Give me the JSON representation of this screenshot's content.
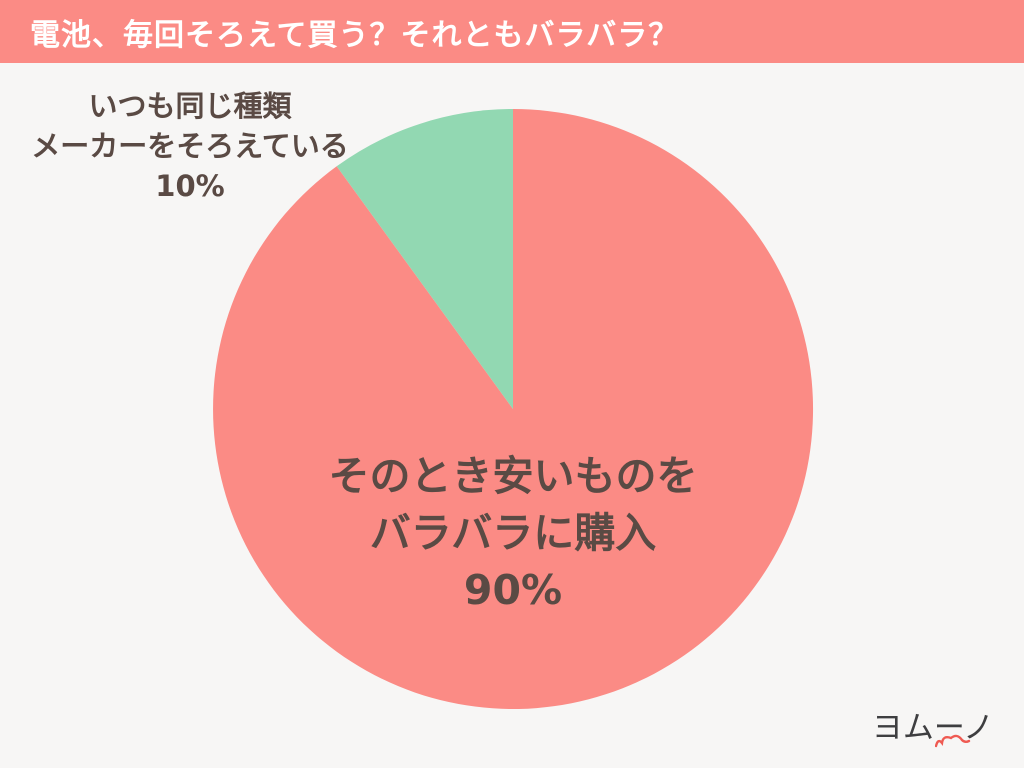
{
  "header": {
    "title": "電池、毎回そろえて買う？それともバラバラ？",
    "bg_color": "#FB8B85",
    "text_color": "#FFFFFF"
  },
  "background_color": "#F7F6F5",
  "label_text_color": "#5A4A44",
  "chart_data": {
    "type": "pie",
    "title": "電池、毎回そろえて買う？それともバラバラ？",
    "categories": [
      "そのとき安いものをバラバラに購入",
      "いつも同じ種類メーカーをそろえている"
    ],
    "values": [
      90,
      10
    ],
    "unit": "%",
    "colors": [
      "#FB8B85",
      "#92D8B2"
    ],
    "start_angle_deg": 0,
    "direction": "clockwise",
    "legend": "none",
    "slices": [
      {
        "label": "そのとき安いものをバラバラに購入",
        "value": 90,
        "pct_label": "90%",
        "color": "#FB8B85",
        "label_position": "inside-center",
        "label_lines": [
          "そのとき安いものを",
          "バラバラに購入"
        ]
      },
      {
        "label": "いつも同じ種類メーカーをそろえている",
        "value": 10,
        "pct_label": "10%",
        "color": "#92D8B2",
        "label_position": "outside-top-left",
        "label_lines": [
          "いつも同じ種類",
          "メーカーをそろえている"
        ]
      }
    ]
  },
  "logo": {
    "text": "ヨムーノ",
    "color": "#3E3E40",
    "accent_color": "#EF5A52"
  }
}
